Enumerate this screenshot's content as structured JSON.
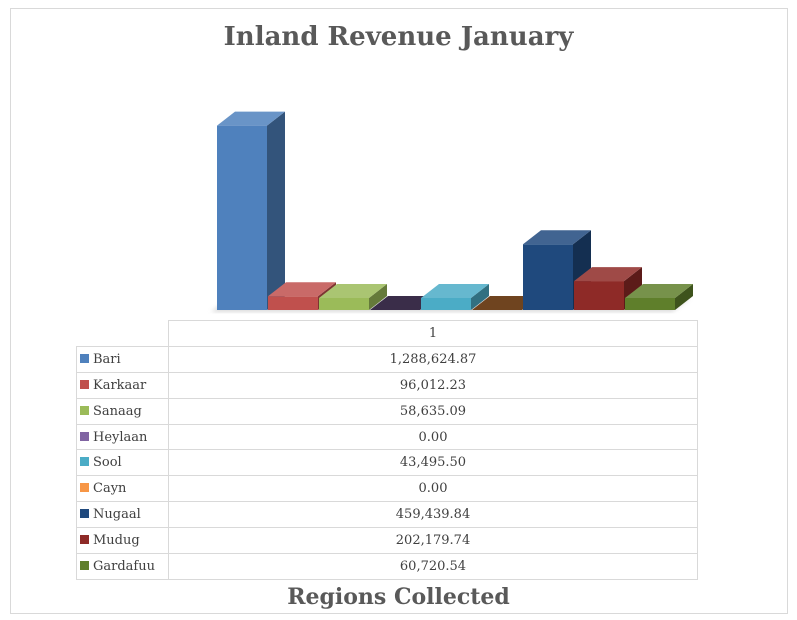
{
  "chart_data": {
    "type": "bar",
    "title": "Inland Revenue January",
    "xlabel": "Regions Collected",
    "categories": [
      "1"
    ],
    "ylim": [
      0,
      1300000
    ],
    "grid": false,
    "legend": "data-table",
    "series": [
      {
        "name": "Bari",
        "values": [
          1288624.87
        ],
        "label": "1,288,624.87",
        "color": "#4f81bd"
      },
      {
        "name": "Karkaar",
        "values": [
          96012.23
        ],
        "label": "96,012.23",
        "color": "#c0504d"
      },
      {
        "name": "Sanaag",
        "values": [
          58635.09
        ],
        "label": "58,635.09",
        "color": "#9bbb59"
      },
      {
        "name": "Heylaan",
        "values": [
          0
        ],
        "label": "0.00",
        "color": "#8064a2"
      },
      {
        "name": "Sool",
        "values": [
          43495.5
        ],
        "label": "43,495.50",
        "color": "#4bacc6"
      },
      {
        "name": "Cayn",
        "values": [
          0
        ],
        "label": "0.00",
        "color": "#f79646"
      },
      {
        "name": "Nugaal",
        "values": [
          459439.84
        ],
        "label": "459,439.84",
        "color": "#1f497d"
      },
      {
        "name": "Mudug",
        "values": [
          202179.74
        ],
        "label": "202,179.74",
        "color": "#8e2a27"
      },
      {
        "name": "Gardafuu",
        "values": [
          60720.54
        ],
        "label": "60,720.54",
        "color": "#5f7f2b"
      }
    ]
  }
}
